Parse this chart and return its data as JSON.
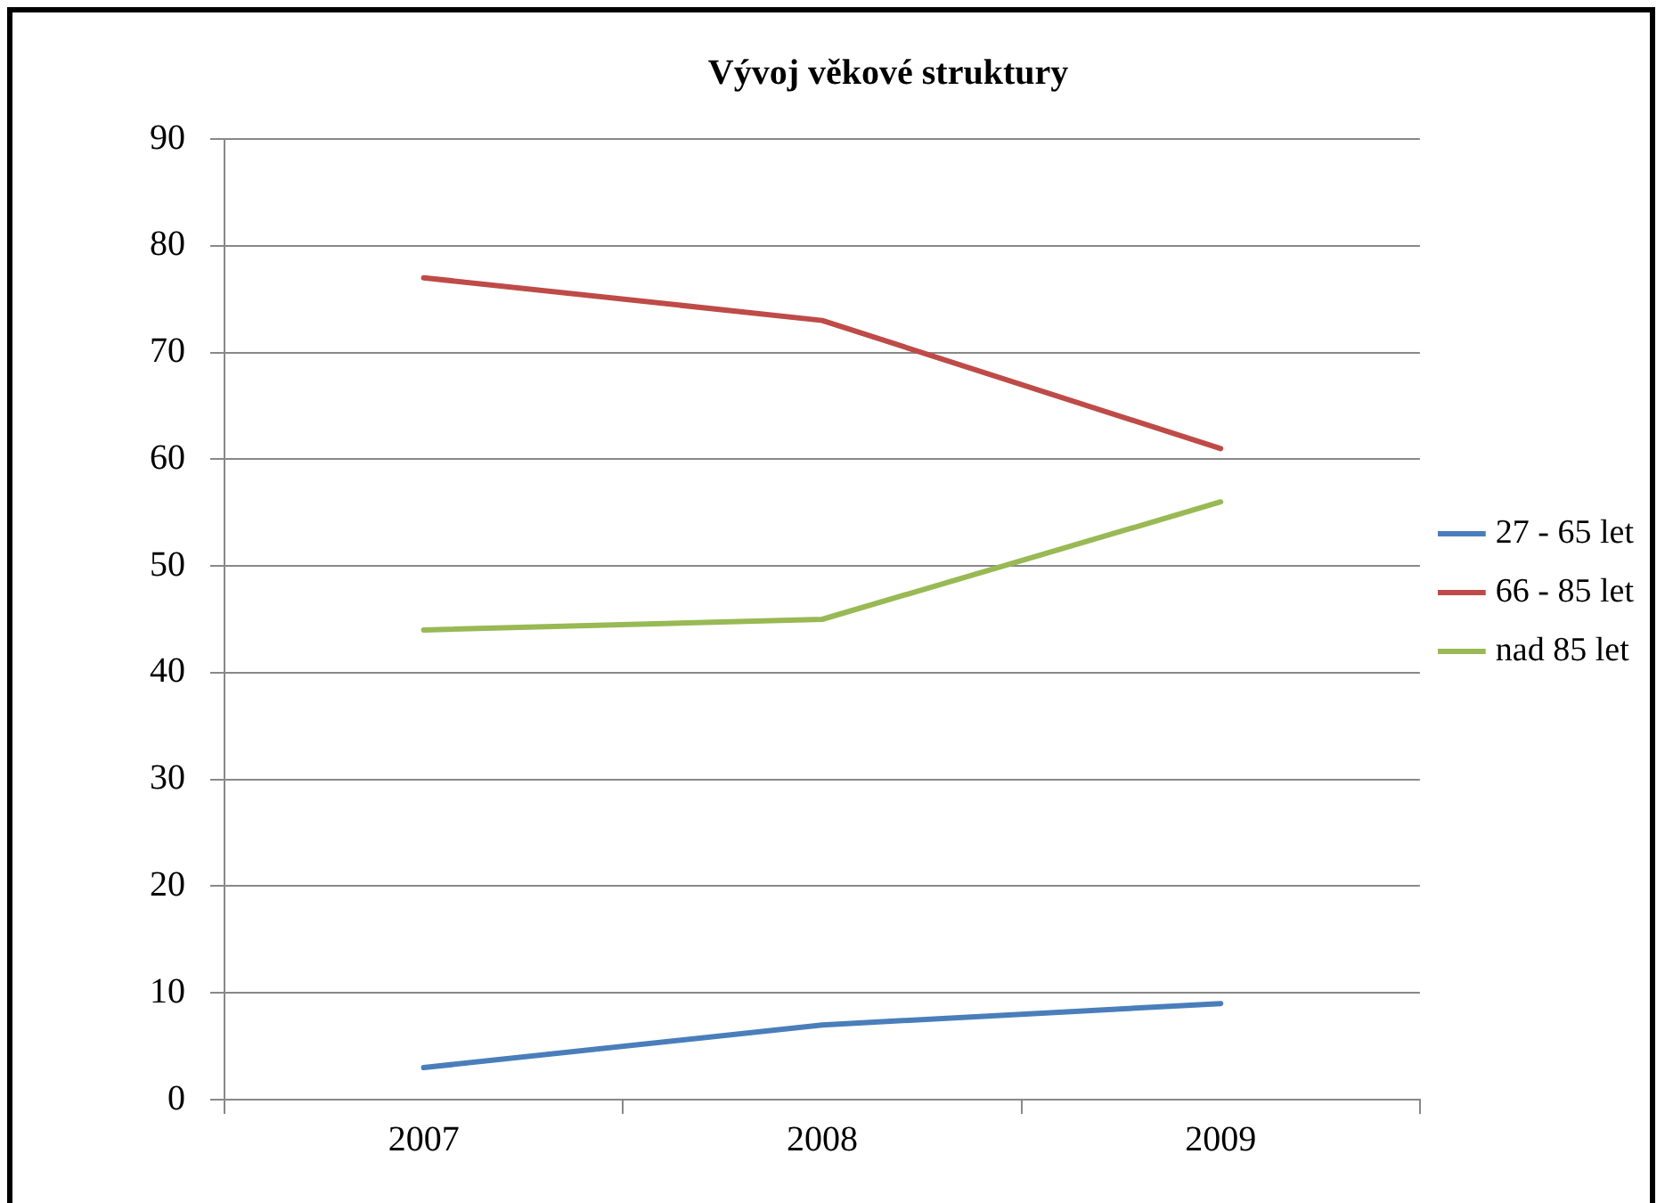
{
  "chart_data": {
    "type": "line",
    "title": "Vývoj věkové struktury",
    "categories": [
      "2007",
      "2008",
      "2009"
    ],
    "series": [
      {
        "name": "27 - 65 let",
        "color": "#4a7ebb",
        "values": [
          3,
          7,
          9
        ]
      },
      {
        "name": "66 - 85 let",
        "color": "#be4b48",
        "values": [
          77,
          73,
          61
        ]
      },
      {
        "name": "nad 85 let",
        "color": "#98b954",
        "values": [
          44,
          45,
          56
        ]
      }
    ],
    "ylim": [
      0,
      90
    ],
    "yticks": [
      0,
      10,
      20,
      30,
      40,
      50,
      60,
      70,
      80,
      90
    ],
    "grid": "y",
    "legend": "right",
    "marker": "none",
    "line_style": "solid"
  }
}
